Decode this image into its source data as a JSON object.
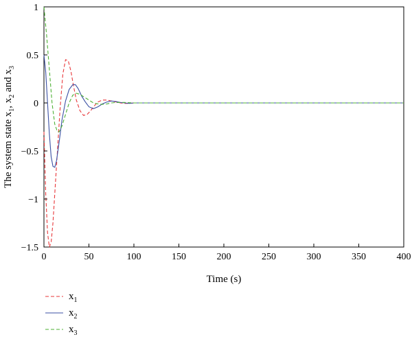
{
  "chart_data": {
    "type": "line",
    "xlabel": "Time (s)",
    "ylabel": {
      "prefix": "The system state x",
      "sub1": "1",
      "sep1": ", x",
      "sub2": "2",
      "sep2": " and x",
      "sub3": "3"
    },
    "xlim": [
      0,
      400
    ],
    "ylim": [
      -1.5,
      1
    ],
    "xticks": [
      0,
      50,
      100,
      150,
      200,
      250,
      300,
      350,
      400
    ],
    "yticks": [
      1,
      0.5,
      0,
      -0.5,
      -1,
      -1.5
    ],
    "ytick_labels": [
      "1",
      "0.5",
      "0",
      "−0.5",
      "−1",
      "−1.5"
    ],
    "grid": false,
    "legend_position": "below-left",
    "series": [
      {
        "name": "x",
        "sub": "1",
        "color": "#e8373a",
        "dash": "dashed",
        "x": [
          0,
          2,
          4,
          6,
          8,
          10,
          12,
          15,
          18,
          21,
          24,
          27,
          30,
          33,
          36,
          40,
          44,
          48,
          52,
          56,
          60,
          65,
          70,
          75,
          80,
          85,
          90,
          95,
          100,
          110,
          120,
          150,
          400
        ],
        "y": [
          -0.3,
          -0.95,
          -1.35,
          -1.5,
          -1.45,
          -1.25,
          -0.95,
          -0.5,
          -0.05,
          0.3,
          0.45,
          0.44,
          0.33,
          0.17,
          0.03,
          -0.08,
          -0.13,
          -0.12,
          -0.08,
          -0.03,
          0.01,
          0.03,
          0.03,
          0.02,
          0.01,
          0.0,
          -0.005,
          -0.005,
          0.0,
          0.0,
          0.0,
          0.0,
          0.0
        ]
      },
      {
        "name": "x",
        "sub": "2",
        "color": "#3a4fa3",
        "dash": "solid",
        "x": [
          0,
          2,
          4,
          6,
          8,
          10,
          12,
          14,
          17,
          20,
          24,
          28,
          32,
          35,
          38,
          42,
          46,
          50,
          55,
          60,
          65,
          70,
          75,
          80,
          85,
          90,
          95,
          100,
          110,
          120,
          400
        ],
        "y": [
          0.5,
          0.32,
          0.0,
          -0.32,
          -0.56,
          -0.66,
          -0.67,
          -0.6,
          -0.4,
          -0.18,
          0.02,
          0.14,
          0.19,
          0.19,
          0.15,
          0.07,
          0.01,
          -0.04,
          -0.06,
          -0.04,
          -0.01,
          0.01,
          0.02,
          0.015,
          0.005,
          0.0,
          -0.005,
          0.0,
          0.0,
          0.0,
          0.0
        ]
      },
      {
        "name": "x",
        "sub": "3",
        "color": "#4cb033",
        "dash": "dashed",
        "x": [
          0,
          3,
          6,
          9,
          12,
          15,
          17,
          20,
          24,
          28,
          32,
          36,
          40,
          45,
          50,
          55,
          60,
          65,
          70,
          75,
          80,
          90,
          100,
          110,
          120,
          400
        ],
        "y": [
          1.0,
          0.7,
          0.35,
          0.0,
          -0.22,
          -0.3,
          -0.3,
          -0.24,
          -0.12,
          0.0,
          0.08,
          0.1,
          0.09,
          0.06,
          0.03,
          0.0,
          -0.01,
          -0.015,
          -0.01,
          0.0,
          0.005,
          0.005,
          0.0,
          0.0,
          0.0,
          0.0
        ]
      }
    ]
  }
}
